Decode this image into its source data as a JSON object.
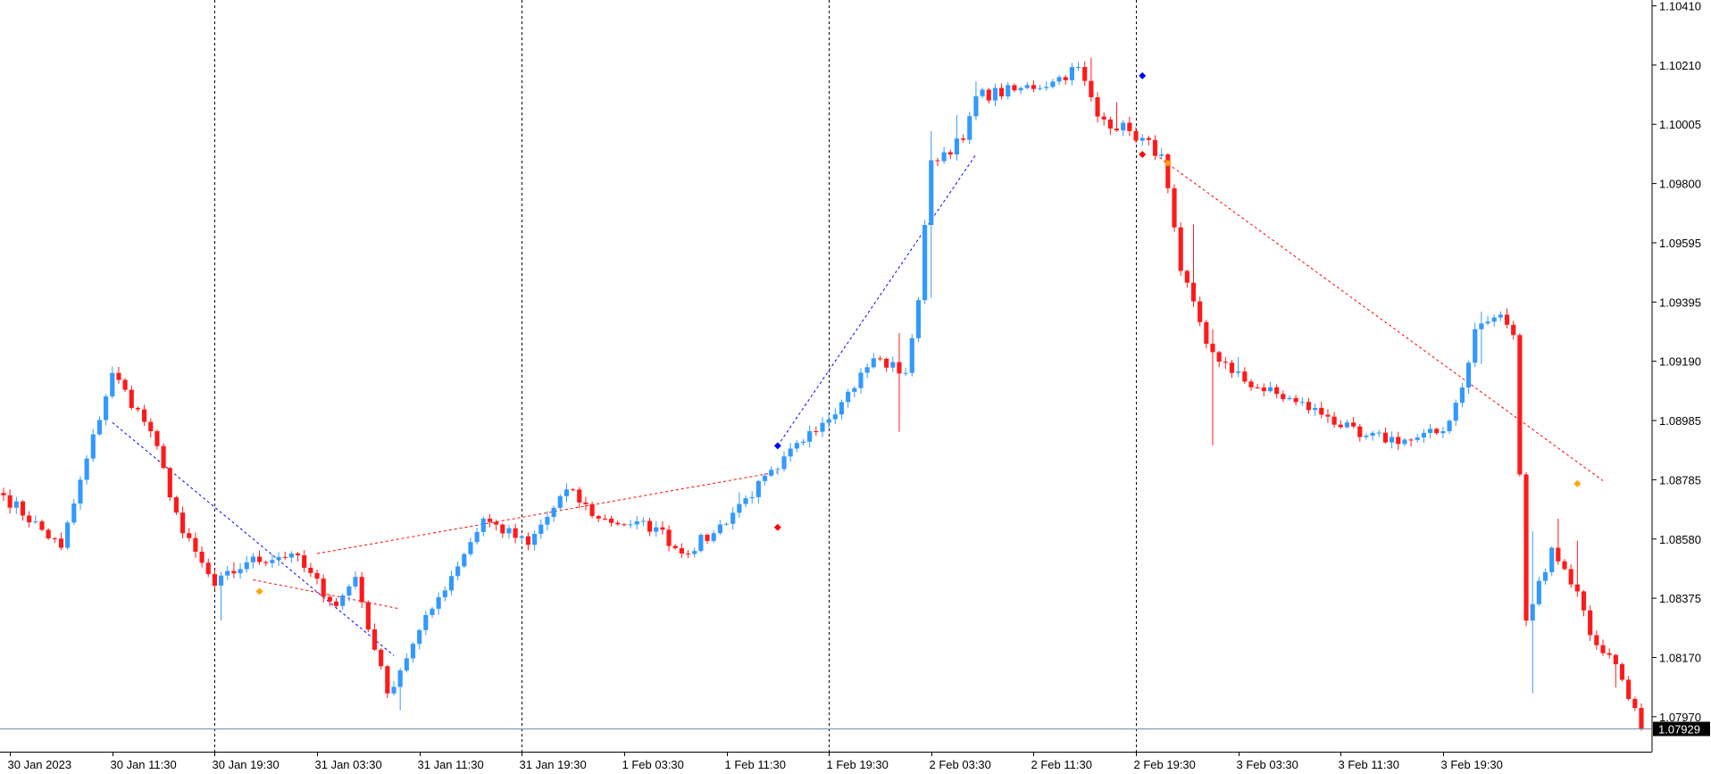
{
  "chart_data": {
    "type": "candlestick",
    "instrument": "",
    "y_ticks": [
      "1.10410",
      "1.10210",
      "1.10005",
      "1.09800",
      "1.09595",
      "1.09395",
      "1.09190",
      "1.08985",
      "1.08785",
      "1.08580",
      "1.08375",
      "1.08170",
      "1.07970"
    ],
    "x_ticks": [
      "30 Jan 2023",
      "30 Jan 11:30",
      "30 Jan 19:30",
      "31 Jan 03:30",
      "31 Jan 11:30",
      "31 Jan 19:30",
      "1 Feb 03:30",
      "1 Feb 11:30",
      "1 Feb 19:30",
      "2 Feb 03:30",
      "2 Feb 11:30",
      "2 Feb 19:30",
      "3 Feb 03:30",
      "3 Feb 11:30",
      "3 Feb 19:30"
    ],
    "ylim": [
      1.0785,
      1.1043
    ],
    "last_price": "1.07929",
    "last_price_value": 1.07929,
    "colors": {
      "up": "#3399ff",
      "down": "#ff1a1a",
      "grid": "#000000",
      "last_line": "#6e8caa"
    },
    "day_separators": [
      "30 Jan 19:30",
      "31 Jan 19:30",
      "1 Feb 19:30",
      "2 Feb 19:30"
    ],
    "anchors": [
      [
        0,
        1.0873
      ],
      [
        9,
        1.0855
      ],
      [
        17,
        1.0915
      ],
      [
        23,
        1.0895
      ],
      [
        28,
        1.086
      ],
      [
        33,
        1.0842
      ],
      [
        38,
        1.085
      ],
      [
        45,
        1.0853
      ],
      [
        52,
        1.0835
      ],
      [
        55,
        1.0845
      ],
      [
        58,
        1.082
      ],
      [
        60,
        1.0805
      ],
      [
        64,
        1.0822
      ],
      [
        68,
        1.0838
      ],
      [
        75,
        1.0865
      ],
      [
        82,
        1.0856
      ],
      [
        88,
        1.0875
      ],
      [
        93,
        1.0865
      ],
      [
        98,
        1.0863
      ],
      [
        102,
        1.0862
      ],
      [
        106,
        1.0853
      ],
      [
        111,
        1.086
      ],
      [
        116,
        1.0872
      ],
      [
        121,
        1.0882
      ],
      [
        126,
        1.0895
      ],
      [
        131,
        1.0905
      ],
      [
        136,
        1.092
      ],
      [
        141,
        1.0915
      ],
      [
        143,
        1.094
      ],
      [
        145,
        1.0988
      ],
      [
        150,
        1.0995
      ],
      [
        152,
        1.101
      ],
      [
        158,
        1.1012
      ],
      [
        164,
        1.1015
      ],
      [
        168,
        1.102
      ],
      [
        171,
        1.1003
      ],
      [
        176,
        1.0998
      ],
      [
        181,
        1.099
      ],
      [
        184,
        1.095
      ],
      [
        188,
        1.0925
      ],
      [
        192,
        1.0915
      ],
      [
        196,
        1.091
      ],
      [
        202,
        1.0905
      ],
      [
        207,
        1.09
      ],
      [
        212,
        1.0893
      ],
      [
        220,
        1.0892
      ],
      [
        225,
        1.0895
      ],
      [
        228,
        1.091
      ],
      [
        230,
        1.093
      ],
      [
        234,
        1.0935
      ],
      [
        236,
        1.0928
      ],
      [
        238,
        1.083
      ],
      [
        242,
        1.0855
      ],
      [
        246,
        1.084
      ],
      [
        248,
        1.0825
      ],
      [
        252,
        1.0815
      ],
      [
        255,
        1.08
      ],
      [
        256,
        1.0793
      ]
    ],
    "extra_wicks": [
      [
        34,
        0,
        -0.0012
      ],
      [
        36,
        0.0003,
        0
      ],
      [
        62,
        0,
        -0.0008
      ],
      [
        96,
        0,
        0.0006
      ],
      [
        115,
        0.0004,
        0
      ],
      [
        140,
        0.001,
        -0.002
      ],
      [
        145,
        0.001,
        -0.0025
      ],
      [
        149,
        0.0008,
        0
      ],
      [
        152,
        0.0005,
        0
      ],
      [
        170,
        0.0008,
        0
      ],
      [
        174,
        0.0009,
        0
      ],
      [
        186,
        0.002,
        0
      ],
      [
        189,
        0.0005,
        -0.0032
      ],
      [
        193,
        0.0005,
        0
      ],
      [
        231,
        0.0004,
        -0.0012
      ],
      [
        239,
        0.0025,
        -0.0025
      ],
      [
        243,
        0.001,
        0
      ],
      [
        246,
        0.0015,
        0
      ],
      [
        252,
        0,
        -0.0008
      ]
    ],
    "signal_lines": [
      {
        "color": "#0000ff",
        "points": [
          [
            17,
            1.0898
          ],
          [
            61,
            1.0818
          ]
        ]
      },
      {
        "color": "#ff0000",
        "points": [
          [
            39,
            1.0844
          ],
          [
            62,
            1.0834
          ]
        ]
      },
      {
        "color": "#ff0000",
        "points": [
          [
            49,
            1.0853
          ],
          [
            121,
            1.0881
          ]
        ]
      },
      {
        "color": "#0000ff",
        "points": [
          [
            121,
            1.089
          ],
          [
            152,
            1.099
          ]
        ]
      },
      {
        "color": "#ff0000",
        "points": [
          [
            180,
            1.099
          ],
          [
            250,
            1.0878
          ]
        ]
      }
    ],
    "markers": [
      {
        "color": "#0000ff",
        "point": [
          121,
          1.089
        ]
      },
      {
        "color": "#0000ff",
        "point": [
          178,
          1.1017
        ]
      },
      {
        "color": "#ff0000",
        "point": [
          178,
          1.099
        ]
      },
      {
        "color": "#ff0000",
        "point": [
          121,
          1.0862
        ]
      },
      {
        "color": "#ffa500",
        "point": [
          40,
          1.084
        ]
      },
      {
        "color": "#ffa500",
        "point": [
          182,
          1.0987
        ]
      },
      {
        "color": "#ffa500",
        "point": [
          246,
          1.0877
        ]
      }
    ]
  }
}
